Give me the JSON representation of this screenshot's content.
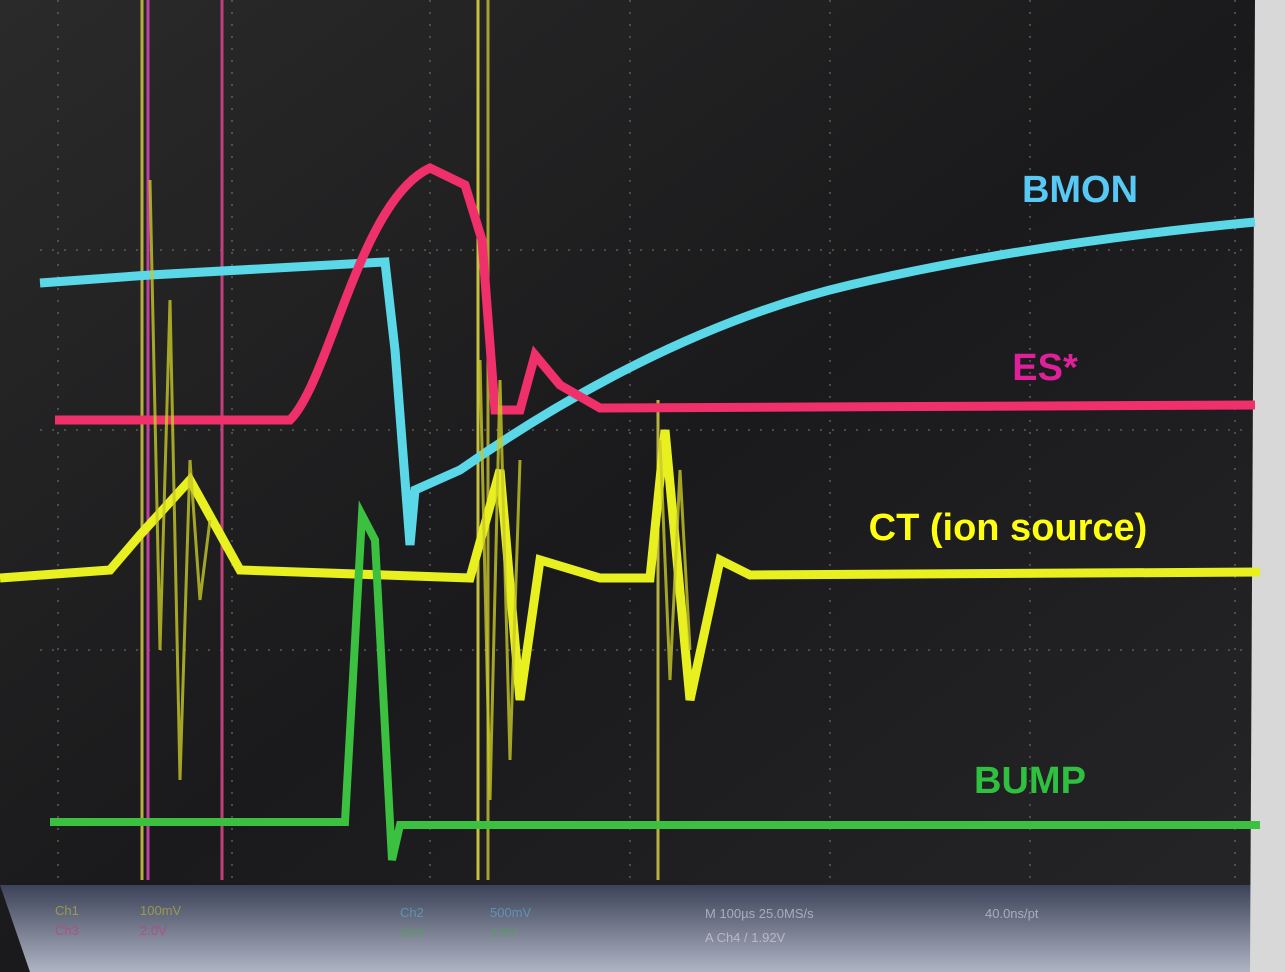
{
  "labels": {
    "bmon": "BMON",
    "es": "ES*",
    "ct": "CT (ion source)",
    "bump": "BUMP"
  },
  "readout": {
    "ch1": "Ch1",
    "ch1_scale": "100mV",
    "ch3": "Ch3",
    "ch3_scale": "2.0V",
    "ch2": "Ch2",
    "ch2_scale": "500mV",
    "ch4": "Ch4",
    "ch4_scale": "2.0V",
    "timebase": "M 100µs 25.0MS/s",
    "resolution": "40.0ns/pt",
    "trigger": "A Ch4 / 1.92V"
  }
}
